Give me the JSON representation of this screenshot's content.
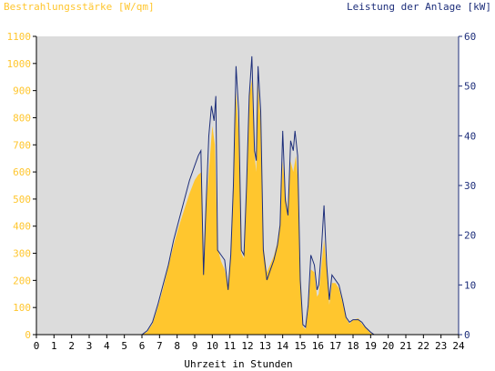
{
  "colors": {
    "background": "#ffffff",
    "plot_background": "#dcdcdc",
    "irradiance": "#ffc62e",
    "power": "#1d2e7a",
    "axis": "#000000"
  },
  "chart_data": {
    "type": "area",
    "left_axis_title": "Bestrahlungsstärke [W/qm]",
    "right_axis_title": "Leistung der Anlage [kW]",
    "xlabel": "Uhrzeit in Stunden",
    "x_range": [
      0,
      24
    ],
    "x_ticks": [
      "0",
      "1",
      "2",
      "3",
      "4",
      "5",
      "6",
      "7",
      "8",
      "9",
      "10",
      "11",
      "12",
      "13",
      "14",
      "15",
      "16",
      "17",
      "18",
      "19",
      "20",
      "21",
      "22",
      "23",
      "24"
    ],
    "left_ylim": [
      0,
      1100
    ],
    "left_ticks": [
      "0",
      "100",
      "200",
      "300",
      "400",
      "500",
      "600",
      "700",
      "800",
      "900",
      "1000",
      "1100"
    ],
    "right_ylim": [
      0,
      60
    ],
    "right_ticks": [
      "0",
      "10",
      "20",
      "30",
      "40",
      "50",
      "60"
    ],
    "grid": false,
    "series": [
      {
        "name": "Bestrahlungsstärke [W/qm]",
        "axis": "left",
        "style": "filled-area",
        "points": [
          [
            0,
            0
          ],
          [
            6.0,
            0
          ],
          [
            6.3,
            10
          ],
          [
            6.6,
            40
          ],
          [
            6.9,
            100
          ],
          [
            7.2,
            170
          ],
          [
            7.5,
            250
          ],
          [
            7.8,
            330
          ],
          [
            8.1,
            400
          ],
          [
            8.4,
            460
          ],
          [
            8.7,
            520
          ],
          [
            9.0,
            570
          ],
          [
            9.2,
            590
          ],
          [
            9.4,
            600
          ],
          [
            9.5,
            250
          ],
          [
            9.6,
            440
          ],
          [
            9.8,
            600
          ],
          [
            10.0,
            770
          ],
          [
            10.15,
            700
          ],
          [
            10.3,
            320
          ],
          [
            10.5,
            270
          ],
          [
            10.7,
            240
          ],
          [
            10.9,
            180
          ],
          [
            11.05,
            300
          ],
          [
            11.2,
            580
          ],
          [
            11.35,
            900
          ],
          [
            11.5,
            740
          ],
          [
            11.65,
            300
          ],
          [
            11.8,
            280
          ],
          [
            11.95,
            560
          ],
          [
            12.1,
            880
          ],
          [
            12.25,
            940
          ],
          [
            12.4,
            660
          ],
          [
            12.5,
            600
          ],
          [
            12.6,
            930
          ],
          [
            12.75,
            780
          ],
          [
            12.9,
            330
          ],
          [
            13.1,
            230
          ],
          [
            13.3,
            260
          ],
          [
            13.5,
            290
          ],
          [
            13.7,
            340
          ],
          [
            13.85,
            420
          ],
          [
            14.0,
            640
          ],
          [
            14.15,
            520
          ],
          [
            14.3,
            450
          ],
          [
            14.45,
            640
          ],
          [
            14.6,
            600
          ],
          [
            14.75,
            660
          ],
          [
            14.85,
            580
          ],
          [
            15.0,
            200
          ],
          [
            15.15,
            30
          ],
          [
            15.3,
            20
          ],
          [
            15.45,
            90
          ],
          [
            15.6,
            240
          ],
          [
            15.8,
            230
          ],
          [
            15.95,
            140
          ],
          [
            16.05,
            150
          ],
          [
            16.2,
            250
          ],
          [
            16.35,
            350
          ],
          [
            16.5,
            240
          ],
          [
            16.65,
            110
          ],
          [
            16.8,
            190
          ],
          [
            17.0,
            190
          ],
          [
            17.2,
            170
          ],
          [
            17.4,
            120
          ],
          [
            17.6,
            60
          ],
          [
            17.8,
            40
          ],
          [
            18.0,
            55
          ],
          [
            18.3,
            60
          ],
          [
            18.5,
            40
          ],
          [
            18.7,
            25
          ],
          [
            19.0,
            5
          ],
          [
            19.2,
            0
          ],
          [
            24,
            0
          ]
        ]
      },
      {
        "name": "Leistung der Anlage [kW]",
        "axis": "right",
        "style": "line",
        "points": [
          [
            0,
            0
          ],
          [
            6.0,
            0
          ],
          [
            6.3,
            0.8
          ],
          [
            6.6,
            2.5
          ],
          [
            6.9,
            6
          ],
          [
            7.2,
            10
          ],
          [
            7.5,
            14
          ],
          [
            7.8,
            19
          ],
          [
            8.1,
            23
          ],
          [
            8.4,
            27
          ],
          [
            8.7,
            31
          ],
          [
            9.0,
            34
          ],
          [
            9.2,
            36
          ],
          [
            9.35,
            37
          ],
          [
            9.5,
            12
          ],
          [
            9.6,
            22
          ],
          [
            9.8,
            40
          ],
          [
            9.95,
            46
          ],
          [
            10.1,
            43
          ],
          [
            10.2,
            48
          ],
          [
            10.3,
            17
          ],
          [
            10.5,
            16
          ],
          [
            10.7,
            15
          ],
          [
            10.9,
            9
          ],
          [
            11.05,
            16
          ],
          [
            11.2,
            30
          ],
          [
            11.35,
            54
          ],
          [
            11.5,
            45
          ],
          [
            11.65,
            17
          ],
          [
            11.8,
            16
          ],
          [
            11.95,
            30
          ],
          [
            12.1,
            48
          ],
          [
            12.25,
            56
          ],
          [
            12.4,
            37
          ],
          [
            12.5,
            35
          ],
          [
            12.6,
            54
          ],
          [
            12.75,
            45
          ],
          [
            12.9,
            17
          ],
          [
            13.1,
            11
          ],
          [
            13.3,
            13
          ],
          [
            13.5,
            15
          ],
          [
            13.7,
            18
          ],
          [
            13.85,
            22
          ],
          [
            14.0,
            41
          ],
          [
            14.15,
            27
          ],
          [
            14.3,
            24
          ],
          [
            14.45,
            39
          ],
          [
            14.6,
            37
          ],
          [
            14.7,
            41
          ],
          [
            14.85,
            36
          ],
          [
            15.0,
            11
          ],
          [
            15.15,
            2
          ],
          [
            15.3,
            1.5
          ],
          [
            15.45,
            6
          ],
          [
            15.6,
            16
          ],
          [
            15.8,
            14
          ],
          [
            15.95,
            9
          ],
          [
            16.05,
            10
          ],
          [
            16.2,
            17
          ],
          [
            16.35,
            26
          ],
          [
            16.5,
            14
          ],
          [
            16.65,
            7
          ],
          [
            16.8,
            12
          ],
          [
            17.0,
            11
          ],
          [
            17.2,
            10
          ],
          [
            17.4,
            7
          ],
          [
            17.6,
            3.5
          ],
          [
            17.8,
            2.5
          ],
          [
            18.0,
            3
          ],
          [
            18.3,
            3
          ],
          [
            18.5,
            2.5
          ],
          [
            18.7,
            1.5
          ],
          [
            19.0,
            0.5
          ],
          [
            19.2,
            0
          ],
          [
            24,
            0
          ]
        ]
      }
    ]
  }
}
